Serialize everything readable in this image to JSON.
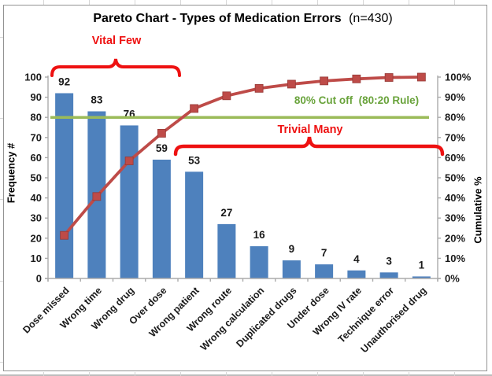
{
  "chart_data": {
    "type": "pareto (bar + cumulative line)",
    "title": "Pareto Chart - Types of Medication Errors",
    "title_suffix": "(n=430)",
    "n_total": 430,
    "categories": [
      "Dose missed",
      "Wrong time",
      "Wrong drug",
      "Over dose",
      "Wrong patient",
      "Wrong route",
      "Wrong calculation",
      "Duplicated drugs",
      "Under dose",
      "Wrong IV rate",
      "Technique error",
      "Unauthorised drug"
    ],
    "series": [
      {
        "name": "Frequency #",
        "type": "bar",
        "values": [
          92,
          83,
          76,
          59,
          53,
          27,
          16,
          9,
          7,
          4,
          3,
          1
        ]
      },
      {
        "name": "Cumulative %",
        "type": "line",
        "values": [
          21.4,
          40.7,
          58.4,
          72.1,
          84.4,
          90.7,
          94.4,
          96.5,
          98.1,
          99.1,
          99.8,
          100.0
        ]
      }
    ],
    "axes": {
      "left": {
        "label": "Frequency #",
        "ticks": [
          0,
          10,
          20,
          30,
          40,
          50,
          60,
          70,
          80,
          90,
          100
        ],
        "range": [
          0,
          100
        ]
      },
      "right": {
        "label": "Cumulative %",
        "ticks": [
          "0%",
          "10%",
          "20%",
          "30%",
          "40%",
          "50%",
          "60%",
          "70%",
          "80%",
          "90%",
          "100%"
        ],
        "range": [
          0,
          100
        ]
      }
    },
    "grid": false,
    "legend": "none",
    "cutoff": {
      "value": 80,
      "label": "80% Cut off  (80:20 Rule)"
    },
    "annotations": {
      "vital_few": {
        "label": "Vital Few",
        "category_span": [
          0,
          3
        ]
      },
      "trivial_many": {
        "label": "Trivial Many",
        "category_span": [
          4,
          11
        ]
      }
    },
    "colors": {
      "bar": "#4E81BD",
      "line": "#BE4B48",
      "marker": "#BE4B48",
      "marker_edge": "#963936",
      "cutoff_line": "#9BBB59",
      "cutoff_text": "#69A33B",
      "annotation": "#EE1111",
      "axis": "#ABABAB",
      "text": "#1A1A1A"
    }
  }
}
